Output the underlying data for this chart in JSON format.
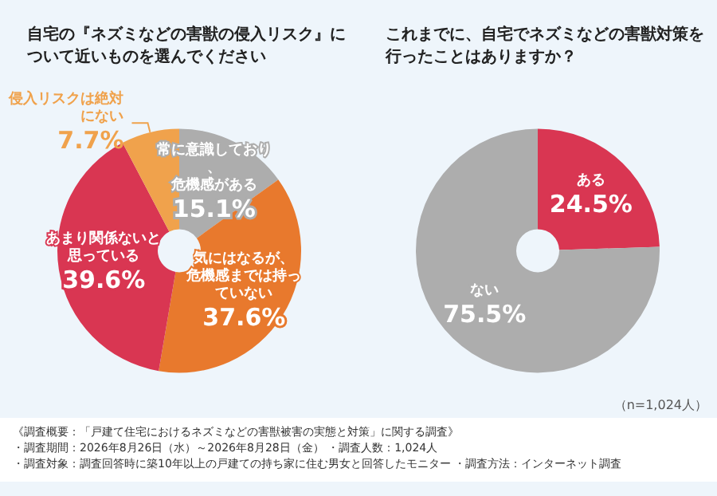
{
  "chart_data": [
    {
      "type": "donut",
      "title": "自宅の『ネズミなどの害獣の侵入リスク』について近いものを選んでください",
      "categories": [
        "常に意識しており、危機感がある",
        "気にはなるが、危機感までは持っていない",
        "あまり関係ないと思っている",
        "侵入リスクは絶対にない"
      ],
      "values": [
        15.1,
        37.6,
        39.6,
        7.7
      ],
      "value_labels": [
        "15.1%",
        "37.6%",
        "39.6%",
        "7.7%"
      ],
      "colors": [
        "#adadad",
        "#e8792d",
        "#d93652",
        "#f0a24c"
      ],
      "legend": false,
      "annotations": [
        "《調査概要：「戸建て住宅におけるネズミなどの害獣被害の実態と対策」に関する調査》",
        "・調査期間：2026年8月26日（水）～2026年8月28日（金） ・調査人数：1,024人",
        "・調査対象：調査回答時に築10年以上の戸建ての持ち家に住む男女と回答したモニター ・調査方法：インターネット調査"
      ]
    },
    {
      "type": "donut",
      "title": "これまでに、自宅でネズミなどの害獣対策を行ったことはありますか？",
      "categories": [
        "ある",
        "ない"
      ],
      "values": [
        24.5,
        75.5
      ],
      "value_labels": [
        "24.5%",
        "75.5%"
      ],
      "colors": [
        "#d93652",
        "#adadad"
      ],
      "legend": false,
      "annotations": [
        "（n=1,024人）"
      ]
    }
  ]
}
